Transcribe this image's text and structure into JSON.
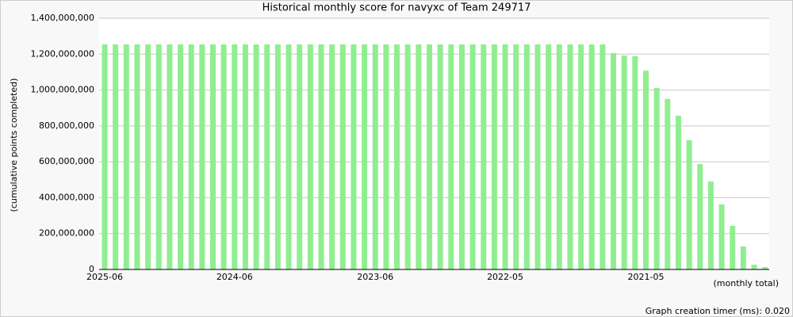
{
  "chart_data": {
    "type": "bar",
    "title": "Historical monthly score for navyxc of Team 249717",
    "y_label": "(cumulative points completed)",
    "x_label": "(monthly total)",
    "categories": [
      "2025-06",
      null,
      null,
      null,
      null,
      null,
      null,
      null,
      null,
      null,
      null,
      null,
      "2024-06",
      null,
      null,
      null,
      null,
      null,
      null,
      null,
      null,
      null,
      null,
      null,
      null,
      "2023-06",
      null,
      null,
      null,
      null,
      null,
      null,
      null,
      null,
      null,
      null,
      null,
      "2022-05",
      null,
      null,
      null,
      null,
      null,
      null,
      null,
      null,
      null,
      null,
      null,
      null,
      "2021-05",
      null,
      null,
      null,
      null,
      null,
      null,
      null,
      null,
      null,
      null,
      null
    ],
    "values": [
      1254000000,
      1254000000,
      1254000000,
      1254000000,
      1254000000,
      1254000000,
      1254000000,
      1254000000,
      1254000000,
      1254000000,
      1254000000,
      1254000000,
      1254000000,
      1254000000,
      1254000000,
      1254000000,
      1254000000,
      1254000000,
      1254000000,
      1254000000,
      1254000000,
      1254000000,
      1254000000,
      1254000000,
      1254000000,
      1254000000,
      1254000000,
      1254000000,
      1254000000,
      1254000000,
      1254000000,
      1254000000,
      1254000000,
      1254000000,
      1254000000,
      1254000000,
      1254000000,
      1254000000,
      1254000000,
      1254000000,
      1254000000,
      1254000000,
      1254000000,
      1254000000,
      1254000000,
      1254000000,
      1254000000,
      1206000000,
      1192000000,
      1188000000,
      1108000000,
      1011000000,
      950000000,
      857000000,
      720000000,
      587000000,
      490000000,
      362000000,
      243000000,
      128000000,
      26000000,
      13000000
    ],
    "color": "#90ee90",
    "ylim": [
      0,
      1400000000
    ],
    "yticks": [
      0,
      {
        "value": 200000000,
        "label": "200,000,000"
      },
      {
        "value": 400000000,
        "label": "400,000,000"
      },
      {
        "value": 600000000,
        "label": "600,000,000"
      },
      {
        "value": 800000000,
        "label": "800,000,000"
      },
      {
        "value": 1000000000,
        "label": "1,000,000,000"
      },
      {
        "value": 1200000000,
        "label": "1,200,000,000"
      },
      {
        "value": 1400000000,
        "label": "1,400,000,000"
      }
    ],
    "grid": true
  },
  "footer": "Graph creation timer (ms): 0.020"
}
